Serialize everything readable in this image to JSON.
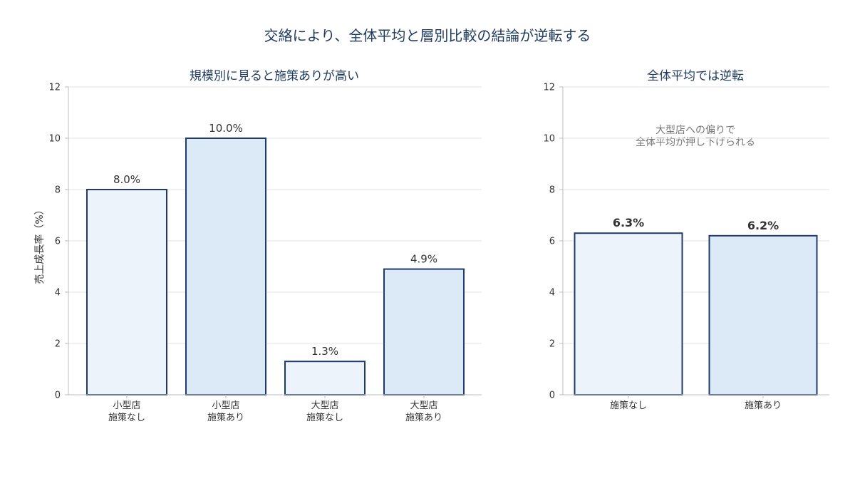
{
  "figure": {
    "title": "交絡により、全体平均と層別比較の結論が逆転する"
  },
  "colors": {
    "no_measure_fill": "#edf3fb",
    "measure_fill": "#dce9f7",
    "bar_stroke": "#1f3a6e"
  },
  "chart_data": [
    {
      "type": "bar",
      "title": "規模別に見ると施策ありが高い",
      "ylabel": "売上成長率（%）",
      "ylim": [
        0,
        12
      ],
      "yticks": [
        0,
        2,
        4,
        6,
        8,
        10,
        12
      ],
      "grid": true,
      "categories": [
        [
          "小型店",
          "施策なし"
        ],
        [
          "小型店",
          "施策あり"
        ],
        [
          "大型店",
          "施策なし"
        ],
        [
          "大型店",
          "施策あり"
        ]
      ],
      "values": [
        8.0,
        10.0,
        1.3,
        4.9
      ],
      "data_labels": [
        "8.0%",
        "10.0%",
        "1.3%",
        "4.9%"
      ],
      "groups": [
        "none",
        "measure",
        "none",
        "measure"
      ]
    },
    {
      "type": "bar",
      "title": "全体平均では逆転",
      "ylim": [
        0,
        12
      ],
      "yticks": [
        0,
        2,
        4,
        6,
        8,
        10,
        12
      ],
      "grid": true,
      "categories": [
        [
          "施策なし"
        ],
        [
          "施策あり"
        ]
      ],
      "values": [
        6.3,
        6.2
      ],
      "data_labels": [
        "6.3%",
        "6.2%"
      ],
      "groups": [
        "none",
        "measure"
      ],
      "annotation": [
        "大型店への偏りで",
        "全体平均が押し下げられる"
      ]
    }
  ]
}
